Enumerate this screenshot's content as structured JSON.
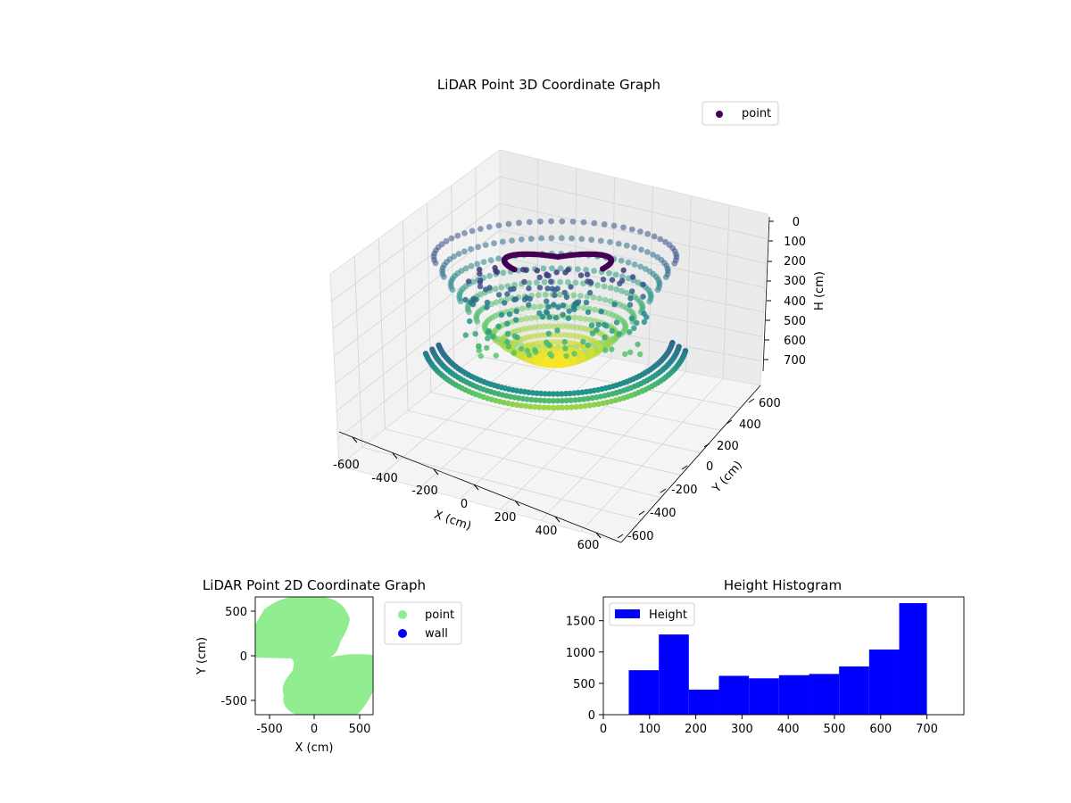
{
  "chart_data": [
    {
      "type": "scatter",
      "title": "LiDAR Point 3D Coordinate Graph",
      "xlabel": "X (cm)",
      "ylabel": "Y (cm)",
      "zlabel": "H (cm)",
      "xlim": [
        -650,
        650
      ],
      "ylim": [
        -650,
        650
      ],
      "zlim": [
        0,
        750
      ],
      "z_inverted": true,
      "xticks": [
        -600,
        -400,
        -200,
        0,
        200,
        400,
        600
      ],
      "yticks": [
        -600,
        -400,
        -200,
        0,
        200,
        400,
        600
      ],
      "zticks": [
        0,
        100,
        200,
        300,
        400,
        500,
        600,
        700
      ],
      "colormap": "viridis",
      "legend": {
        "placement": "top-right",
        "entries": [
          {
            "name": "point",
            "color": "#440154"
          }
        ]
      },
      "grid": true
    },
    {
      "type": "scatter",
      "title": "LiDAR Point 2D Coordinate Graph",
      "xlabel": "X (cm)",
      "ylabel": "Y (cm)",
      "xlim": [
        -650,
        650
      ],
      "ylim": [
        -650,
        650
      ],
      "xticks": [
        -500,
        0,
        500
      ],
      "yticks": [
        500,
        0,
        -500
      ],
      "series": [
        {
          "name": "point",
          "color": "#90ee90"
        },
        {
          "name": "wall",
          "color": "#0000ff"
        }
      ],
      "legend": {
        "placement": "outside-right"
      },
      "grid": false
    },
    {
      "type": "bar",
      "title": "Height Histogram",
      "xlabel": "",
      "ylabel": "",
      "xlim": [
        0,
        780
      ],
      "ylim": [
        0,
        1880
      ],
      "xticks": [
        0,
        100,
        200,
        300,
        400,
        500,
        600,
        700
      ],
      "yticks": [
        0,
        500,
        1000,
        1500
      ],
      "bin_edges": [
        55,
        120,
        185,
        250,
        315,
        380,
        445,
        510,
        575,
        640,
        700
      ],
      "values": [
        710,
        1280,
        400,
        620,
        580,
        630,
        650,
        770,
        1040,
        1780
      ],
      "series": [
        {
          "name": "Height",
          "color": "#0000ff"
        }
      ],
      "legend": {
        "placement": "top-left"
      },
      "grid": false
    }
  ]
}
